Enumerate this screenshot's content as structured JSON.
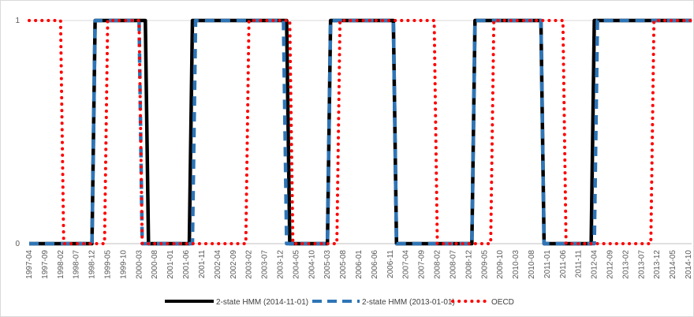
{
  "chart_data": {
    "type": "line",
    "title": "",
    "xlabel": "",
    "ylabel": "",
    "ylim": [
      0,
      1
    ],
    "y_ticks": [
      "0",
      "1"
    ],
    "grid": true,
    "legend_position": "bottom",
    "x_tick_labels": [
      "1997-04",
      "1997-09",
      "1998-02",
      "1998-07",
      "1998-12",
      "1999-05",
      "1999-10",
      "2000-03",
      "2000-08",
      "2001-01",
      "2001-06",
      "2001-11",
      "2002-04",
      "2002-09",
      "2003-02",
      "2003-07",
      "2003-12",
      "2004-05",
      "2004-10",
      "2005-03",
      "2005-08",
      "2006-01",
      "2006-06",
      "2006-11",
      "2007-04",
      "2007-09",
      "2008-02",
      "2008-07",
      "2008-12",
      "2009-05",
      "2009-10",
      "2010-03",
      "2010-08",
      "2011-01",
      "2011-06",
      "2011-11",
      "2012-04",
      "2012-09",
      "2013-02",
      "2013-07",
      "2013-12",
      "2014-05",
      "2014-10"
    ],
    "x_start": "1997-04",
    "x_end": "2014-11",
    "series": [
      {
        "name": "2-state HMM (2014-11-01)",
        "color": "#000000",
        "style": "solid",
        "points": [
          [
            "1997-04",
            0
          ],
          [
            "1998-12",
            0
          ],
          [
            "1999-01",
            1
          ],
          [
            "2000-05",
            1
          ],
          [
            "2000-06",
            0
          ],
          [
            "2001-07",
            0
          ],
          [
            "2001-08",
            1
          ],
          [
            "2004-02",
            1
          ],
          [
            "2004-03",
            0
          ],
          [
            "2005-03",
            0
          ],
          [
            "2005-04",
            1
          ],
          [
            "2006-12",
            1
          ],
          [
            "2007-01",
            0
          ],
          [
            "2009-01",
            0
          ],
          [
            "2009-02",
            1
          ],
          [
            "2010-11",
            1
          ],
          [
            "2010-12",
            0
          ],
          [
            "2012-03",
            0
          ],
          [
            "2012-04",
            1
          ],
          [
            "2014-11",
            1
          ]
        ]
      },
      {
        "name": "2-state HMM (2013-01-01)",
        "color": "#2e75b6",
        "style": "dashed",
        "points": [
          [
            "1997-04",
            0
          ],
          [
            "1998-12",
            0
          ],
          [
            "1999-01",
            1
          ],
          [
            "2000-03",
            1
          ],
          [
            "2000-04",
            0
          ],
          [
            "2001-08",
            0
          ],
          [
            "2001-09",
            1
          ],
          [
            "2004-01",
            1
          ],
          [
            "2004-02",
            0
          ],
          [
            "2005-03",
            0
          ],
          [
            "2005-04",
            1
          ],
          [
            "2006-12",
            1
          ],
          [
            "2007-01",
            0
          ],
          [
            "2009-01",
            0
          ],
          [
            "2009-02",
            1
          ],
          [
            "2010-11",
            1
          ],
          [
            "2010-12",
            0
          ],
          [
            "2012-04",
            0
          ],
          [
            "2012-05",
            1
          ],
          [
            "2014-11",
            1
          ]
        ]
      },
      {
        "name": "OECD",
        "color": "#ff0000",
        "style": "dotted",
        "points": [
          [
            "1997-04",
            1
          ],
          [
            "1998-02",
            1
          ],
          [
            "1998-03",
            0
          ],
          [
            "1999-04",
            0
          ],
          [
            "1999-05",
            1
          ],
          [
            "2000-03",
            1
          ],
          [
            "2000-04",
            0
          ],
          [
            "2003-01",
            0
          ],
          [
            "2003-02",
            1
          ],
          [
            "2004-03",
            1
          ],
          [
            "2004-04",
            0
          ],
          [
            "2005-06",
            0
          ],
          [
            "2005-07",
            1
          ],
          [
            "2008-01",
            1
          ],
          [
            "2008-02",
            0
          ],
          [
            "2009-07",
            0
          ],
          [
            "2009-08",
            1
          ],
          [
            "2011-06",
            1
          ],
          [
            "2011-07",
            0
          ],
          [
            "2013-10",
            0
          ],
          [
            "2013-11",
            1
          ],
          [
            "2014-11",
            1
          ]
        ]
      }
    ]
  }
}
